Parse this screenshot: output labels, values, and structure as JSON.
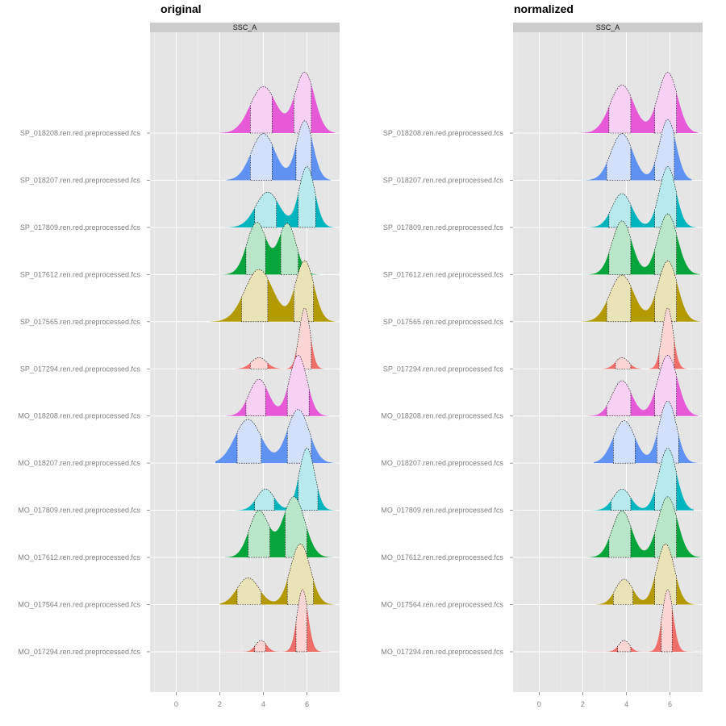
{
  "chart_data": [
    {
      "type": "area",
      "panel": "original",
      "title": "original",
      "strip_label": "SSC_A",
      "xlim": [
        -1.2,
        7.5
      ],
      "x_ticks": [
        0,
        2,
        4,
        6
      ],
      "grid": true,
      "samples": [
        "SP_018208.ren.red.preprocessed.fcs",
        "SP_018207.ren.red.preprocessed.fcs",
        "SP_017809.ren.red.preprocessed.fcs",
        "SP_017612.ren.red.preprocessed.fcs",
        "SP_017565.ren.red.preprocessed.fcs",
        "SP_017294.ren.red.preprocessed.fcs",
        "MO_018208.ren.red.preprocessed.fcs",
        "MO_018207.ren.red.preprocessed.fcs",
        "MO_017809.ren.red.preprocessed.fcs",
        "MO_017612.ren.red.preprocessed.fcs",
        "MO_017564.ren.red.preprocessed.fcs",
        "MO_017294.ren.red.preprocessed.fcs"
      ],
      "series": [
        {
          "color": "#e65ad8",
          "range": [
            2.0,
            7.3
          ],
          "peaks": [
            [
              4.0,
              0.33,
              0.6
            ],
            [
              5.9,
              0.43,
              0.45
            ]
          ],
          "bands": [
            [
              3.4,
              4.4
            ],
            [
              5.4,
              6.2
            ]
          ]
        },
        {
          "color": "#5f92f2",
          "range": [
            2.3,
            7.1
          ],
          "peaks": [
            [
              4.0,
              0.33,
              0.55
            ],
            [
              5.9,
              0.42,
              0.38
            ]
          ],
          "bands": [
            [
              3.4,
              4.4
            ],
            [
              5.5,
              6.2
            ]
          ]
        },
        {
          "color": "#00b5be",
          "range": [
            2.0,
            7.3
          ],
          "peaks": [
            [
              4.2,
              0.25,
              0.55
            ],
            [
              6.0,
              0.43,
              0.36
            ]
          ],
          "bands": [
            [
              3.6,
              4.6
            ],
            [
              5.6,
              6.4
            ]
          ]
        },
        {
          "color": "#05a53b",
          "range": [
            1.9,
            6.6
          ],
          "peaks": [
            [
              3.7,
              0.37,
              0.45
            ],
            [
              5.1,
              0.36,
              0.4
            ]
          ],
          "bands": [
            [
              3.2,
              4.1
            ],
            [
              4.8,
              5.6
            ]
          ]
        },
        {
          "color": "#b39a00",
          "range": [
            1.1,
            7.5
          ],
          "peaks": [
            [
              3.8,
              0.37,
              0.65
            ],
            [
              5.9,
              0.43,
              0.42
            ]
          ],
          "bands": [
            [
              3.0,
              4.2
            ],
            [
              5.4,
              6.3
            ]
          ]
        },
        {
          "color": "#f06e6a",
          "range": [
            2.2,
            6.9
          ],
          "peaks": [
            [
              3.8,
              0.08,
              0.35
            ],
            [
              5.9,
              0.43,
              0.25
            ]
          ],
          "bands": [
            [
              3.4,
              4.2
            ],
            [
              5.5,
              6.2
            ]
          ]
        },
        {
          "color": "#e65ad8",
          "range": [
            2.3,
            7.0
          ],
          "peaks": [
            [
              3.8,
              0.26,
              0.45
            ],
            [
              5.6,
              0.43,
              0.4
            ]
          ],
          "bands": [
            [
              3.2,
              4.1
            ],
            [
              5.1,
              6.1
            ]
          ]
        },
        {
          "color": "#5f92f2",
          "range": [
            1.8,
            7.5
          ],
          "peaks": [
            [
              3.3,
              0.31,
              0.6
            ],
            [
              5.6,
              0.38,
              0.5
            ]
          ],
          "bands": [
            [
              2.8,
              3.9
            ],
            [
              5.1,
              6.2
            ]
          ]
        },
        {
          "color": "#00b5be",
          "range": [
            2.5,
            7.4
          ],
          "peaks": [
            [
              4.1,
              0.15,
              0.4
            ],
            [
              6.0,
              0.44,
              0.35
            ]
          ],
          "bands": [
            [
              3.6,
              4.5
            ],
            [
              5.6,
              6.5
            ]
          ]
        },
        {
          "color": "#05a53b",
          "range": [
            1.6,
            7.5
          ],
          "peaks": [
            [
              3.8,
              0.33,
              0.45
            ],
            [
              5.4,
              0.43,
              0.5
            ]
          ],
          "bands": [
            [
              3.3,
              4.3
            ],
            [
              5.0,
              6.0
            ]
          ]
        },
        {
          "color": "#b39a00",
          "range": [
            2.0,
            7.3
          ],
          "peaks": [
            [
              3.3,
              0.19,
              0.5
            ],
            [
              5.7,
              0.43,
              0.45
            ]
          ],
          "bands": [
            [
              2.8,
              3.9
            ],
            [
              5.1,
              6.3
            ]
          ]
        },
        {
          "color": "#f06e6a",
          "range": [
            2.1,
            7.0
          ],
          "peaks": [
            [
              3.9,
              0.08,
              0.25
            ],
            [
              5.8,
              0.44,
              0.25
            ]
          ],
          "bands": [
            [
              3.6,
              4.1
            ],
            [
              5.5,
              6.0
            ]
          ]
        }
      ]
    },
    {
      "type": "area",
      "panel": "normalized",
      "title": "normalized",
      "strip_label": "SSC_A",
      "xlim": [
        -1.2,
        7.5
      ],
      "x_ticks": [
        0,
        2,
        4,
        6
      ],
      "grid": true,
      "samples": [
        "SP_018208.ren.red.preprocessed.fcs",
        "SP_018207.ren.red.preprocessed.fcs",
        "SP_017809.ren.red.preprocessed.fcs",
        "SP_017612.ren.red.preprocessed.fcs",
        "SP_017565.ren.red.preprocessed.fcs",
        "SP_017294.ren.red.preprocessed.fcs",
        "MO_018208.ren.red.preprocessed.fcs",
        "MO_018207.ren.red.preprocessed.fcs",
        "MO_017809.ren.red.preprocessed.fcs",
        "MO_017612.ren.red.preprocessed.fcs",
        "MO_017564.ren.red.preprocessed.fcs",
        "MO_017294.ren.red.preprocessed.fcs"
      ],
      "series": [
        {
          "color": "#e65ad8",
          "range": [
            1.8,
            7.3
          ],
          "peaks": [
            [
              3.8,
              0.34,
              0.55
            ],
            [
              5.9,
              0.43,
              0.45
            ]
          ],
          "bands": [
            [
              3.2,
              4.2
            ],
            [
              5.3,
              6.3
            ]
          ]
        },
        {
          "color": "#5f92f2",
          "range": [
            1.9,
            7.0
          ],
          "peaks": [
            [
              3.8,
              0.33,
              0.5
            ],
            [
              5.9,
              0.43,
              0.38
            ]
          ],
          "bands": [
            [
              3.1,
              4.2
            ],
            [
              5.3,
              6.2
            ]
          ]
        },
        {
          "color": "#00b5be",
          "range": [
            1.8,
            7.2
          ],
          "peaks": [
            [
              3.8,
              0.24,
              0.45
            ],
            [
              5.9,
              0.43,
              0.38
            ]
          ],
          "bands": [
            [
              3.2,
              4.2
            ],
            [
              5.3,
              6.3
            ]
          ]
        },
        {
          "color": "#05a53b",
          "range": [
            2.0,
            7.4
          ],
          "peaks": [
            [
              3.8,
              0.38,
              0.45
            ],
            [
              5.9,
              0.43,
              0.45
            ]
          ],
          "bands": [
            [
              3.2,
              4.2
            ],
            [
              5.3,
              6.3
            ]
          ]
        },
        {
          "color": "#b39a00",
          "range": [
            1.2,
            7.5
          ],
          "peaks": [
            [
              3.8,
              0.33,
              0.55
            ],
            [
              5.9,
              0.43,
              0.45
            ]
          ],
          "bands": [
            [
              3.1,
              4.2
            ],
            [
              5.3,
              6.3
            ]
          ]
        },
        {
          "color": "#f06e6a",
          "range": [
            2.2,
            6.9
          ],
          "peaks": [
            [
              3.8,
              0.08,
              0.3
            ],
            [
              5.9,
              0.43,
              0.25
            ]
          ],
          "bands": [
            [
              3.5,
              4.2
            ],
            [
              5.5,
              6.2
            ]
          ]
        },
        {
          "color": "#e65ad8",
          "range": [
            2.2,
            7.3
          ],
          "peaks": [
            [
              3.8,
              0.25,
              0.45
            ],
            [
              5.9,
              0.43,
              0.45
            ]
          ],
          "bands": [
            [
              3.1,
              4.2
            ],
            [
              5.3,
              6.3
            ]
          ]
        },
        {
          "color": "#5f92f2",
          "range": [
            2.5,
            7.5
          ],
          "peaks": [
            [
              3.9,
              0.3,
              0.5
            ],
            [
              5.9,
              0.44,
              0.4
            ]
          ],
          "bands": [
            [
              3.4,
              4.4
            ],
            [
              5.4,
              6.4
            ]
          ]
        },
        {
          "color": "#00b5be",
          "range": [
            2.2,
            7.1
          ],
          "peaks": [
            [
              3.8,
              0.15,
              0.4
            ],
            [
              5.9,
              0.44,
              0.4
            ]
          ],
          "bands": [
            [
              3.3,
              4.2
            ],
            [
              5.3,
              6.3
            ]
          ]
        },
        {
          "color": "#05a53b",
          "range": [
            1.7,
            7.5
          ],
          "peaks": [
            [
              3.8,
              0.33,
              0.45
            ],
            [
              5.9,
              0.43,
              0.45
            ]
          ],
          "bands": [
            [
              3.2,
              4.2
            ],
            [
              5.3,
              6.3
            ]
          ]
        },
        {
          "color": "#b39a00",
          "range": [
            2.6,
            7.4
          ],
          "peaks": [
            [
              3.9,
              0.18,
              0.4
            ],
            [
              5.8,
              0.43,
              0.4
            ]
          ],
          "bands": [
            [
              3.4,
              4.3
            ],
            [
              5.3,
              6.3
            ]
          ]
        },
        {
          "color": "#f06e6a",
          "range": [
            2.2,
            7.1
          ],
          "peaks": [
            [
              3.9,
              0.08,
              0.25
            ],
            [
              5.9,
              0.44,
              0.25
            ]
          ],
          "bands": [
            [
              3.6,
              4.2
            ],
            [
              5.6,
              6.1
            ]
          ]
        }
      ]
    }
  ]
}
